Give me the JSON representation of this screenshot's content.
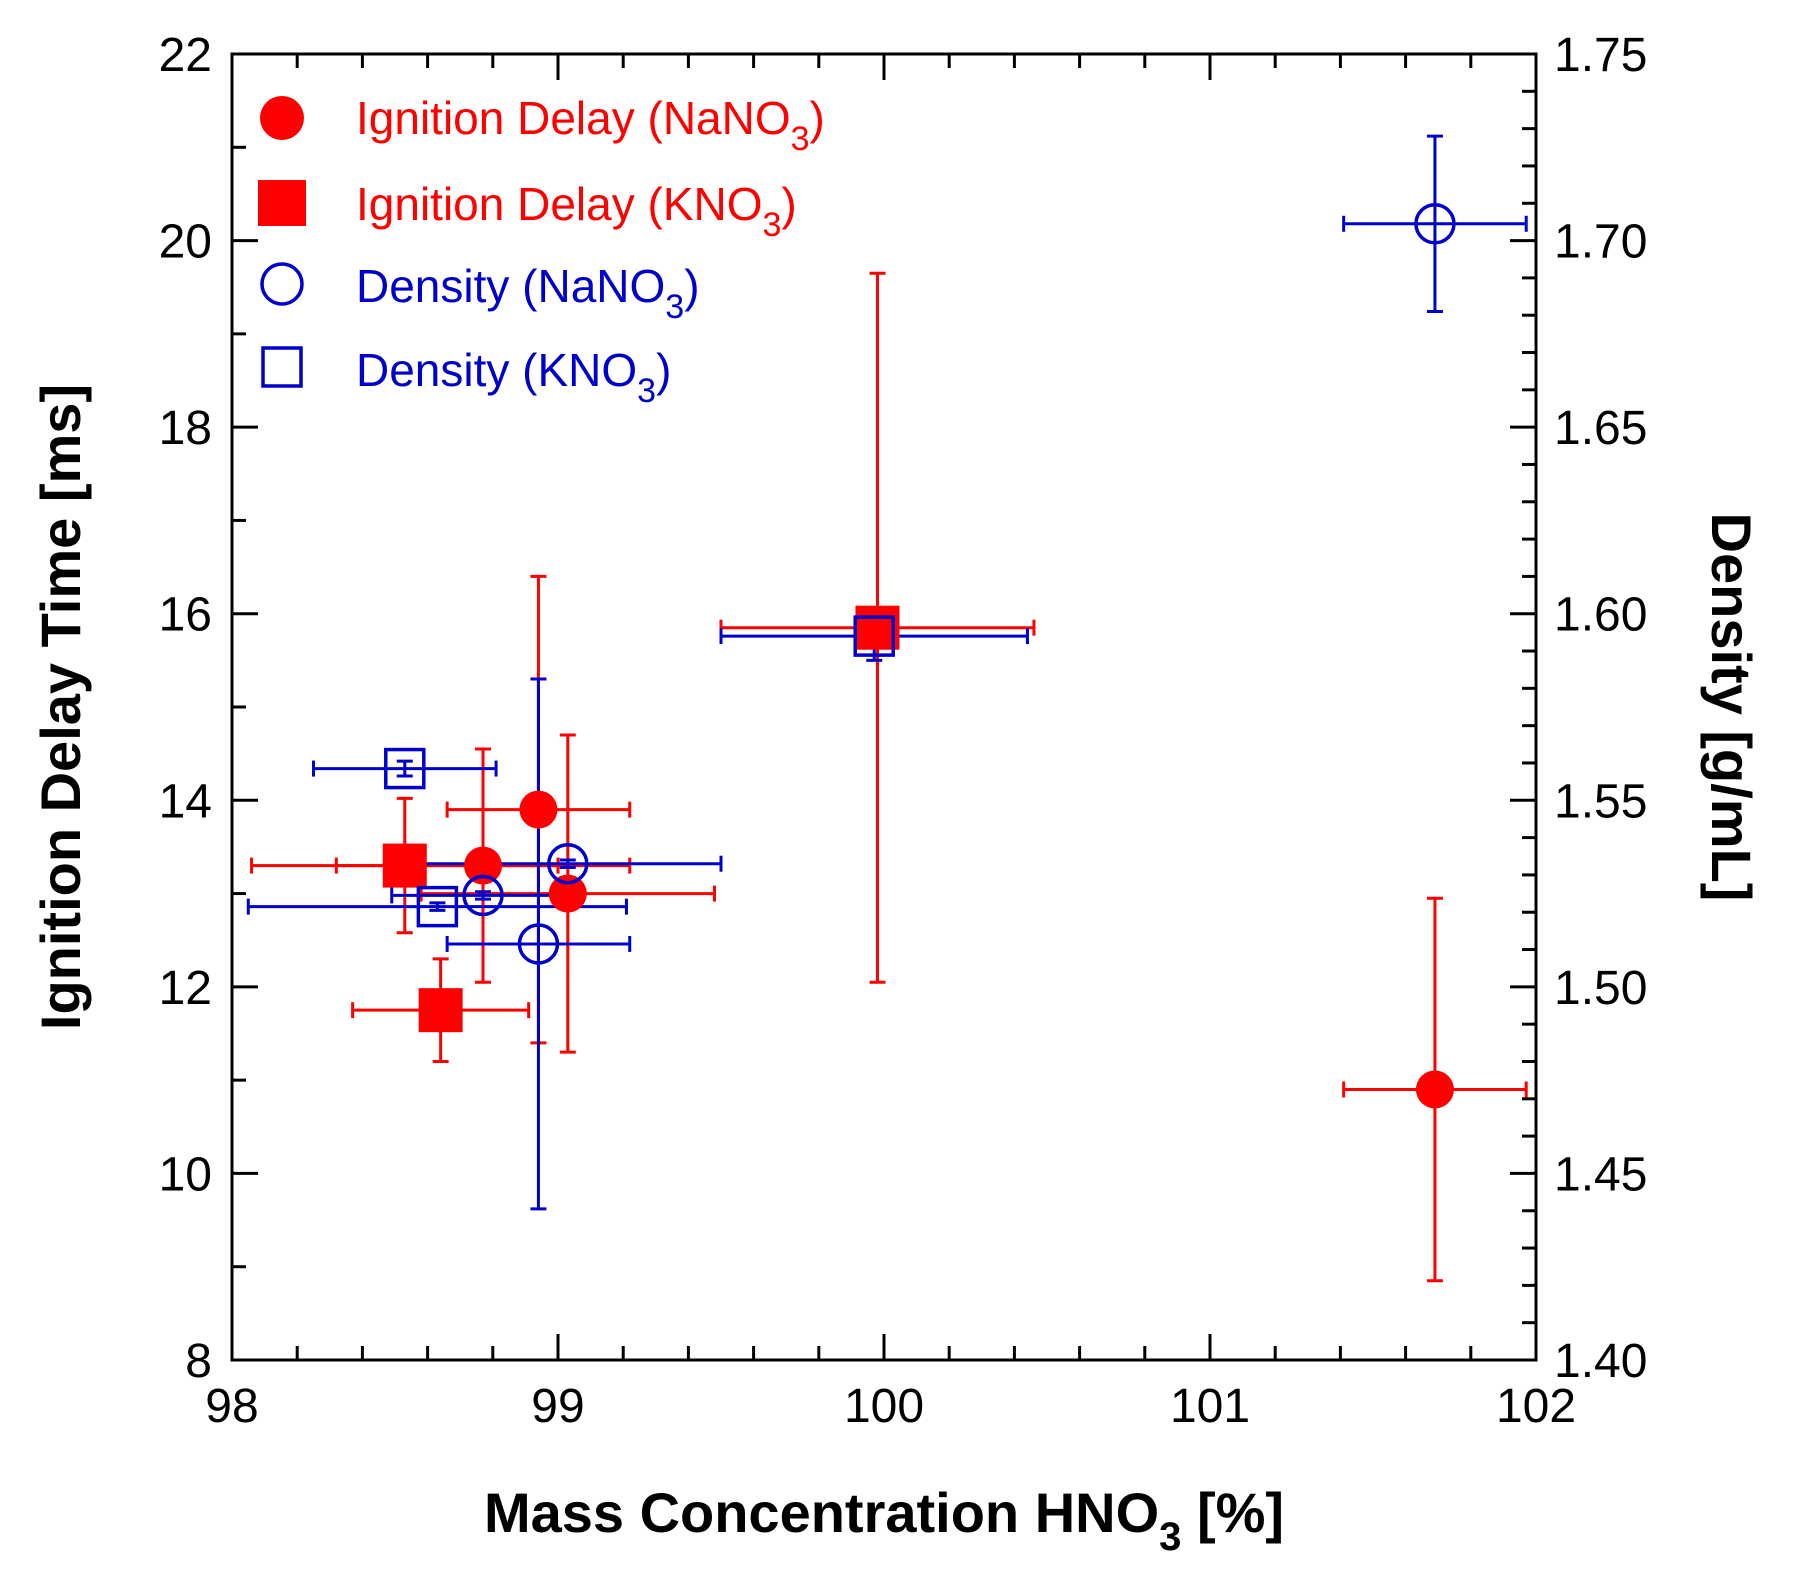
{
  "chart_data": {
    "type": "scatter",
    "title": "",
    "xlabel": {
      "main": "Mass Concentration HNO",
      "sub": "3",
      "suffix": " [%]"
    },
    "ylabel_left": "Ignition Delay Time [ms]",
    "ylabel_right": "Density [g/mL]",
    "xlim": [
      98,
      102
    ],
    "ylim_left": [
      8,
      22
    ],
    "ylim_right": [
      1.4,
      1.75
    ],
    "x_ticks": [
      "98",
      "99",
      "100",
      "101",
      "102"
    ],
    "y_left_ticks": [
      "8",
      "10",
      "12",
      "14",
      "16",
      "18",
      "20",
      "22"
    ],
    "y_right_ticks": [
      "1.40",
      "1.45",
      "1.50",
      "1.55",
      "1.60",
      "1.65",
      "1.70",
      "1.75"
    ],
    "legend_position": "top-left",
    "colors": {
      "ignition": "#ff0000",
      "density": "#0000cc",
      "axis": "#000000"
    },
    "series": [
      {
        "name": "Ignition Delay (NaNO3)",
        "label": {
          "main": "Ignition Delay (NaNO",
          "sub": "3",
          "suffix": ")"
        },
        "axis": "left",
        "marker": "filled-circle",
        "color": "#ff0000",
        "points": [
          {
            "x": 98.77,
            "y": 13.3,
            "xerr": 0.45,
            "yerr": 1.25
          },
          {
            "x": 98.94,
            "y": 13.9,
            "xerr": 0.28,
            "yerr": 2.5
          },
          {
            "x": 99.03,
            "y": 13.0,
            "xerr": 0.45,
            "yerr": 1.7
          },
          {
            "x": 101.69,
            "y": 10.9,
            "xerr": 0.28,
            "yerr": 2.05
          }
        ]
      },
      {
        "name": "Ignition Delay (KNO3)",
        "label": {
          "main": "Ignition Delay (KNO",
          "sub": "3",
          "suffix": ")"
        },
        "axis": "left",
        "marker": "filled-square",
        "color": "#ff0000",
        "points": [
          {
            "x": 98.53,
            "y": 13.3,
            "xerr": 0.47,
            "yerr": 0.72
          },
          {
            "x": 98.64,
            "y": 11.75,
            "xerr": 0.27,
            "yerr": 0.55
          },
          {
            "x": 99.98,
            "y": 15.85,
            "xerr": 0.48,
            "yerr": 3.8
          }
        ]
      },
      {
        "name": "Density (NaNO3)",
        "label": {
          "main": "Density (NaNO",
          "sub": "3",
          "suffix": ")"
        },
        "axis": "right",
        "marker": "open-circle",
        "color": "#0000cc",
        "points": [
          {
            "x": 98.77,
            "y": 1.5245,
            "xerr": 0.28,
            "yerr": 0.001
          },
          {
            "x": 98.94,
            "y": 1.5115,
            "xerr": 0.28,
            "yerr": 0.071
          },
          {
            "x": 99.03,
            "y": 1.533,
            "xerr": 0.47,
            "yerr": 0.001
          },
          {
            "x": 101.69,
            "y": 1.7045,
            "xerr": 0.28,
            "yerr": 0.0235
          }
        ]
      },
      {
        "name": "Density (KNO3)",
        "label": {
          "main": "Density (KNO",
          "sub": "3",
          "suffix": ")"
        },
        "axis": "right",
        "marker": "open-square",
        "color": "#0000cc",
        "points": [
          {
            "x": 98.53,
            "y": 1.5585,
            "xerr": 0.28,
            "yerr": 0.002
          },
          {
            "x": 98.63,
            "y": 1.5215,
            "xerr": 0.58,
            "yerr": 0.001
          },
          {
            "x": 99.97,
            "y": 1.594,
            "xerr": 0.47,
            "yerr": 0.0065
          }
        ]
      }
    ]
  }
}
